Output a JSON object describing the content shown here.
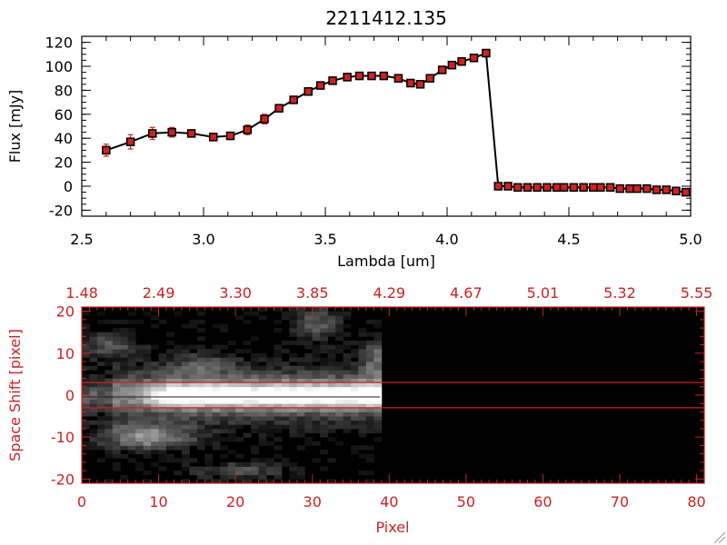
{
  "chart_data": [
    {
      "type": "line",
      "title": "2211412.135",
      "xlabel": "Lambda [um]",
      "ylabel": "Flux [mJy]",
      "xlim": [
        2.5,
        5.0
      ],
      "ylim": [
        -25,
        125
      ],
      "xticks": [
        "2.5",
        "3.0",
        "3.5",
        "4.0",
        "4.5",
        "5.0"
      ],
      "yticks": [
        "-20",
        "0",
        "20",
        "40",
        "60",
        "80",
        "100",
        "120"
      ],
      "line_color": "#000000",
      "marker_color": "#cc2222",
      "series": [
        {
          "x": [
            2.6,
            2.7,
            2.79,
            2.87,
            2.95,
            3.04,
            3.11,
            3.18,
            3.25,
            3.31,
            3.37,
            3.43,
            3.48,
            3.53,
            3.59,
            3.64,
            3.69,
            3.74,
            3.8,
            3.85,
            3.89,
            3.93,
            3.98,
            4.02,
            4.06,
            4.11,
            4.16,
            4.21,
            4.25,
            4.29,
            4.33,
            4.37,
            4.41,
            4.45,
            4.48,
            4.52,
            4.56,
            4.6,
            4.63,
            4.67,
            4.71,
            4.75,
            4.78,
            4.82,
            4.86,
            4.9,
            4.94,
            4.98
          ],
          "y": [
            30,
            37,
            44,
            45,
            44,
            41,
            42,
            47,
            56,
            65,
            72,
            79,
            84,
            88,
            91,
            92,
            92,
            92,
            90,
            86,
            85,
            90,
            97,
            101,
            104,
            107,
            111,
            0,
            0,
            -1,
            -1,
            -1,
            -1,
            -1,
            -1,
            -1,
            -1,
            -1,
            -1,
            -1,
            -2,
            -2,
            -2,
            -2,
            -3,
            -3,
            -4,
            -5
          ],
          "err": [
            5,
            6,
            5,
            4,
            3,
            3,
            3,
            4,
            4,
            3,
            2,
            2,
            2,
            2,
            2,
            2,
            2,
            2,
            2,
            2,
            2,
            2,
            2,
            2,
            2,
            2,
            2,
            1,
            1,
            1,
            1,
            1,
            1,
            1,
            1,
            1,
            1,
            1,
            1,
            1,
            1,
            1,
            1,
            1,
            1,
            1,
            1,
            1
          ]
        }
      ]
    },
    {
      "type": "heatmap",
      "xlabel": "Pixel",
      "ylabel": "Space Shift [pixel]",
      "xlim": [
        0,
        81
      ],
      "ylim": [
        -21,
        21
      ],
      "xticks": [
        "0",
        "10",
        "20",
        "30",
        "40",
        "50",
        "60",
        "70",
        "80"
      ],
      "yticks": [
        "-20",
        "-10",
        "0",
        "10",
        "20"
      ],
      "top_axis_ticks": [
        "1.48",
        "2.49",
        "3.30",
        "3.85",
        "4.29",
        "4.67",
        "5.01",
        "5.32",
        "5.55"
      ],
      "aperture_lines": [
        3,
        -3
      ],
      "data_extent_pixels": [
        0,
        39
      ],
      "axis_color": "#cc2222"
    }
  ]
}
